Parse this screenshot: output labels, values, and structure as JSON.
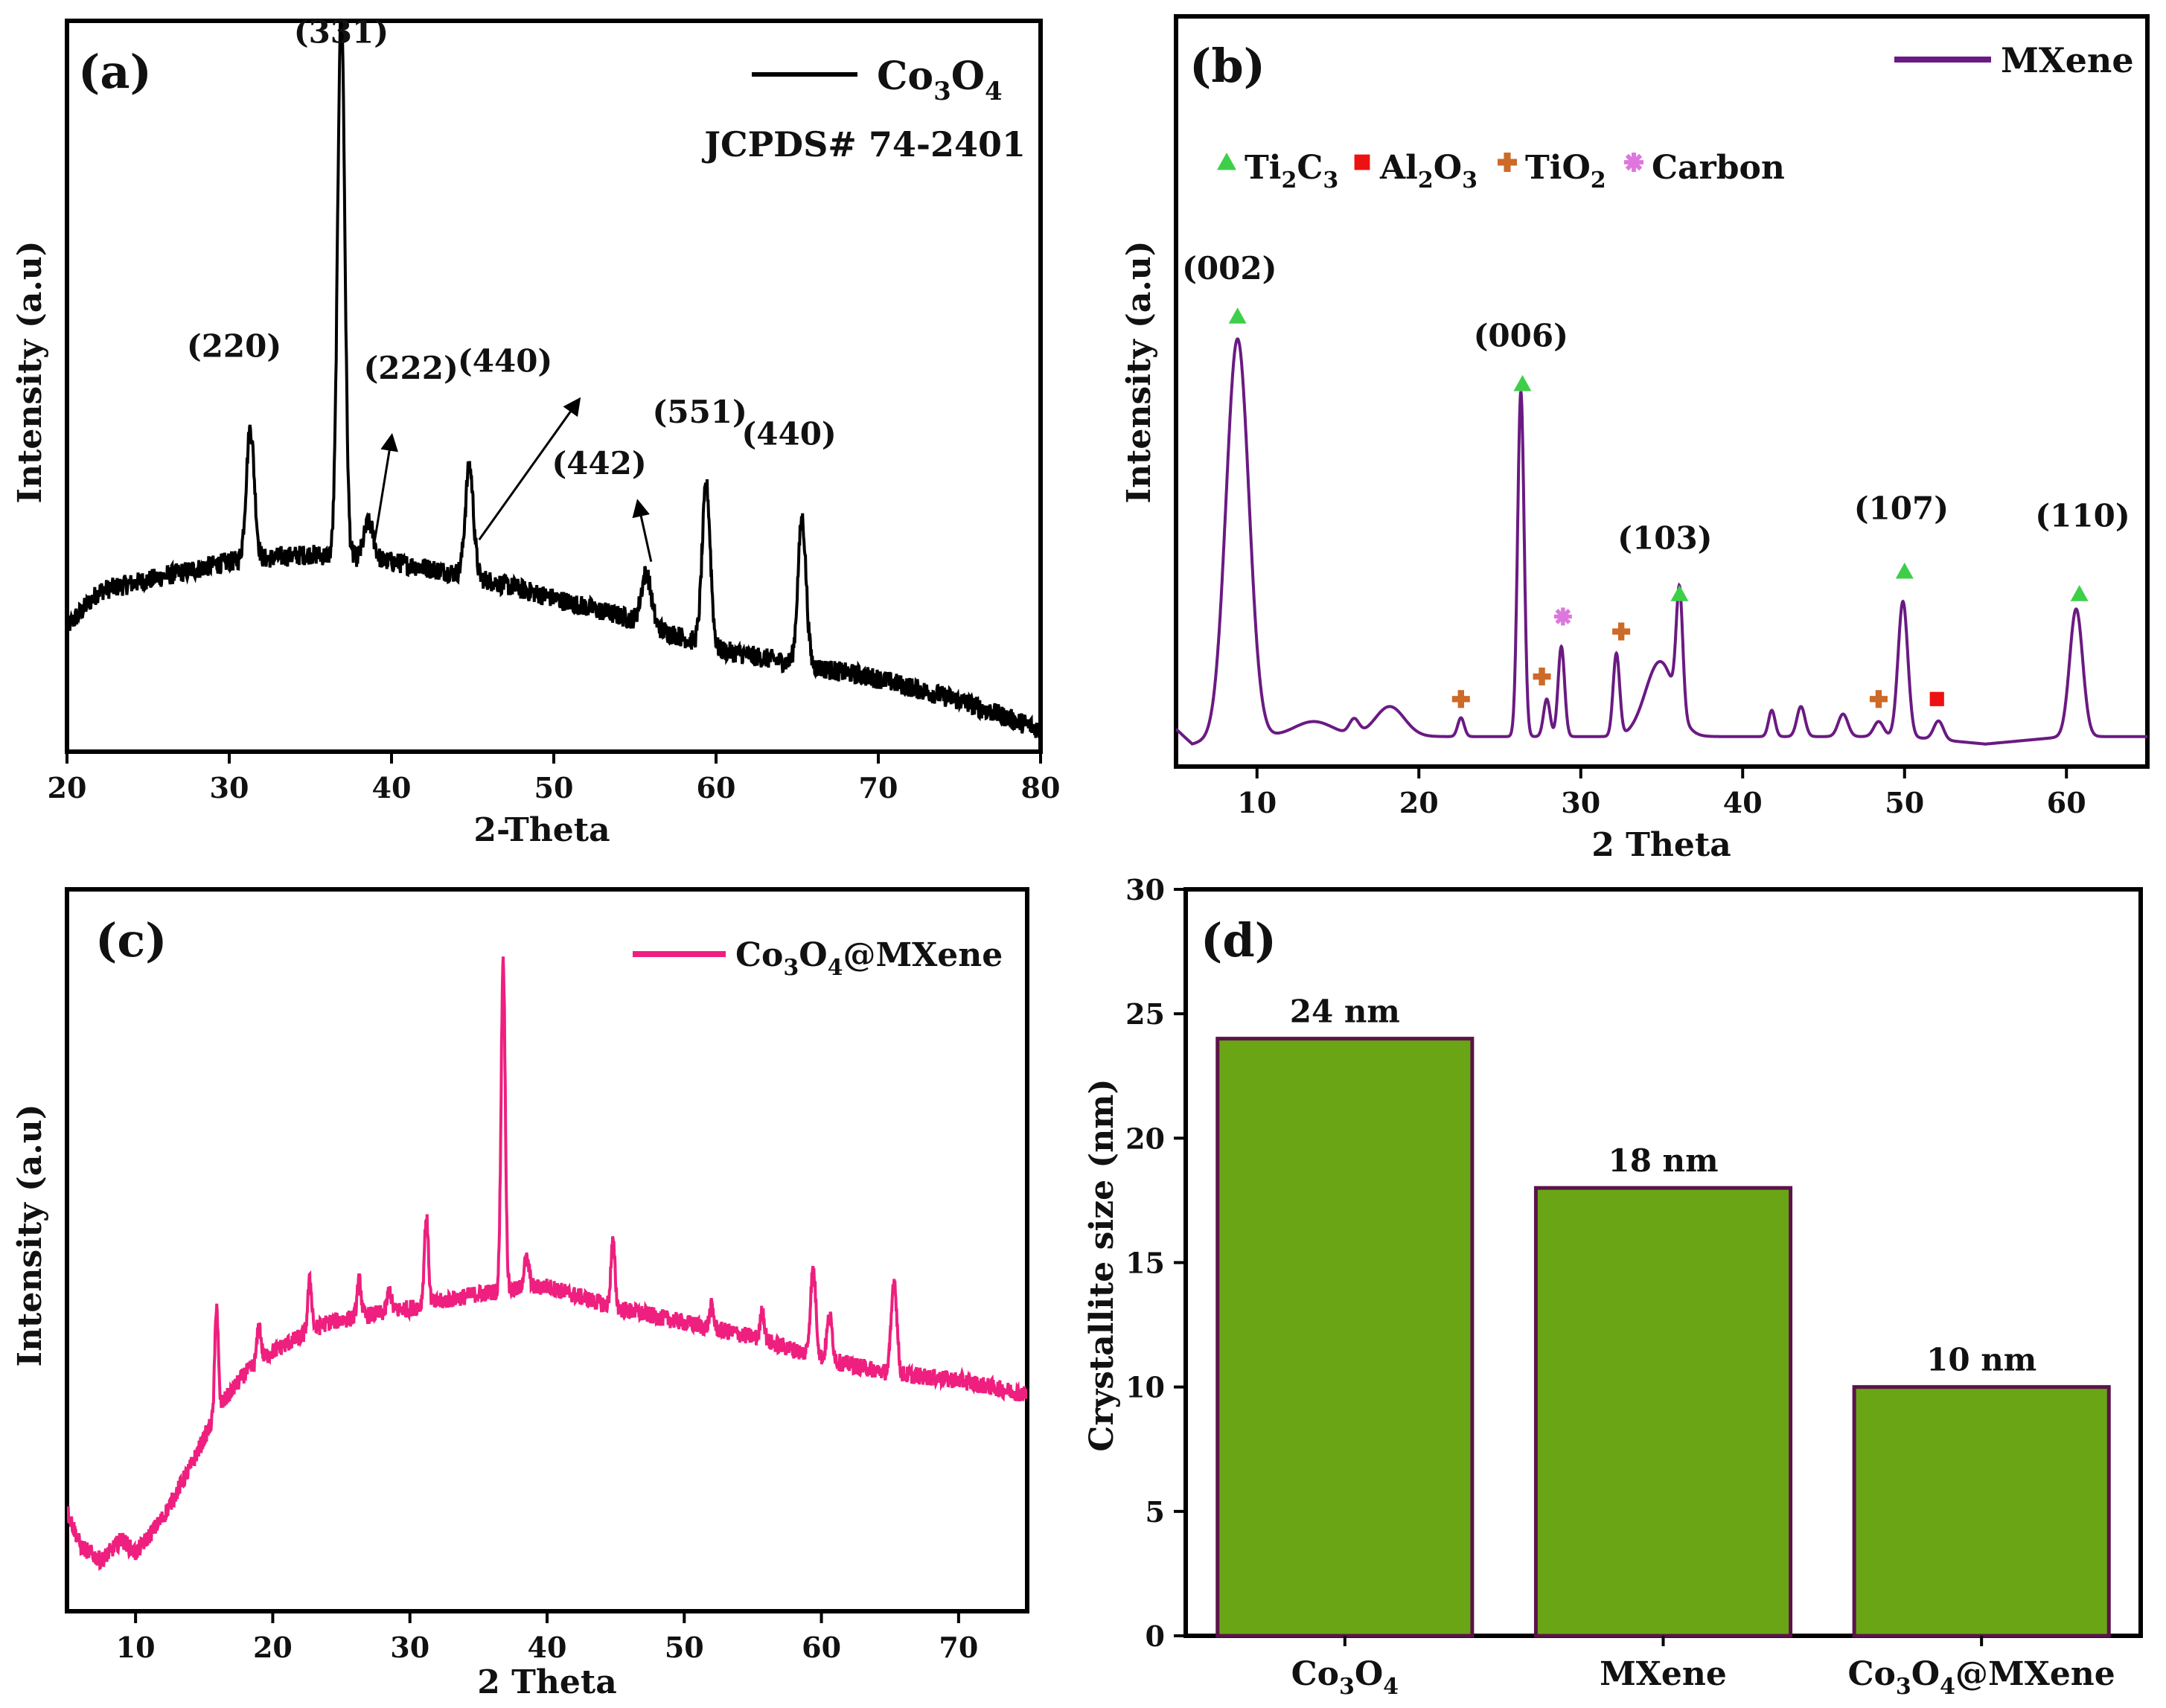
{
  "chart_data": [
    {
      "id": "a",
      "type": "line",
      "panel_label": "(a)",
      "xlabel": "2-Theta",
      "ylabel": "Intensity (a.u)",
      "xlim": [
        20,
        80
      ],
      "ylim": [
        0,
        100
      ],
      "xticks": [
        20,
        30,
        40,
        50,
        60,
        70,
        80
      ],
      "legend": {
        "name_main": "Co",
        "sub1": "3",
        "mid": "O",
        "sub2": "4",
        "position": "top-right"
      },
      "reference_text": "JCPDS# 74-2401",
      "series": [
        {
          "name": "Co3O4",
          "color": "#000000",
          "baseline": [
            [
              20,
              17
            ],
            [
              22,
              22
            ],
            [
              26,
              24
            ],
            [
              30,
              26
            ],
            [
              35,
              27
            ],
            [
              40,
              26
            ],
            [
              45,
              24
            ],
            [
              50,
              21
            ],
            [
              55,
              18
            ],
            [
              60,
              14
            ],
            [
              65,
              12
            ],
            [
              70,
              10
            ],
            [
              75,
              7
            ],
            [
              80,
              3
            ]
          ],
          "peaks": [
            [
              31.3,
              18,
              0.25
            ],
            [
              36.9,
              76,
              0.22
            ],
            [
              38.6,
              5,
              0.3
            ],
            [
              44.8,
              15,
              0.25
            ],
            [
              55.7,
              7,
              0.3
            ],
            [
              59.4,
              22,
              0.25
            ],
            [
              65.3,
              20,
              0.25
            ]
          ],
          "noise": 1.4
        }
      ],
      "peak_labels": [
        {
          "text": "(331)",
          "x": 36.9,
          "y": 97
        },
        {
          "text": "(220)",
          "x": 30.3,
          "y": 54
        },
        {
          "text": "(222)",
          "x": 41.2,
          "y": 51
        },
        {
          "text": "(440)",
          "x": 47.0,
          "y": 52
        },
        {
          "text": "(442)",
          "x": 52.8,
          "y": 38
        },
        {
          "text": "(551)",
          "x": 59.0,
          "y": 45
        },
        {
          "text": "(440)",
          "x": 64.5,
          "y": 42
        }
      ],
      "arrows": [
        {
          "from": [
            38.9,
            28
          ],
          "to": [
            40.0,
            43
          ]
        },
        {
          "from": [
            45.4,
            29
          ],
          "to": [
            51.5,
            48
          ]
        },
        {
          "from": [
            56.0,
            26
          ],
          "to": [
            55.2,
            34
          ]
        }
      ]
    },
    {
      "id": "b",
      "type": "line",
      "panel_label": "(b)",
      "xlabel": "2 Theta",
      "ylabel": "Intensity (a.u)",
      "xlim": [
        5,
        65
      ],
      "ylim": [
        0,
        100
      ],
      "xticks": [
        10,
        20,
        30,
        40,
        50,
        60
      ],
      "legend": {
        "name": "MXene",
        "position": "top-right"
      },
      "phase_legend": [
        {
          "marker": "triangle",
          "color": "#3ecf4a",
          "main": "Ti",
          "sub1": "2",
          "mid": "C",
          "sub2": "3"
        },
        {
          "marker": "square",
          "color": "#ee1111",
          "main": "Al",
          "sub1": "2",
          "mid": "O",
          "sub2": "3"
        },
        {
          "marker": "plus",
          "color": "#cc6a28",
          "main": "TiO",
          "sub1": "2",
          "mid": "",
          "sub2": ""
        },
        {
          "marker": "star",
          "color": "#dd77dd",
          "main": "Carbon",
          "sub1": "",
          "mid": "",
          "sub2": ""
        }
      ],
      "series": [
        {
          "name": "MXene",
          "color": "#6a1a82",
          "baseline": [
            [
              5,
              5
            ],
            [
              6,
              3
            ],
            [
              8,
              4
            ],
            [
              12,
              4
            ],
            [
              20,
              4
            ],
            [
              30,
              4
            ],
            [
              40,
              4
            ],
            [
              50,
              4
            ],
            [
              55,
              3
            ],
            [
              60,
              4
            ],
            [
              65,
              4
            ]
          ],
          "peaks": [
            [
              8.8,
              53,
              0.7
            ],
            [
              13.5,
              2,
              1.2
            ],
            [
              16,
              2,
              0.3
            ],
            [
              18.2,
              4,
              0.9
            ],
            [
              22.6,
              2.5,
              0.2
            ],
            [
              26.3,
              46,
              0.2
            ],
            [
              27.9,
              5,
              0.2
            ],
            [
              28.8,
              12,
              0.2
            ],
            [
              32.2,
              11,
              0.2
            ],
            [
              34.9,
              10,
              0.9
            ],
            [
              36.1,
              16,
              0.2
            ],
            [
              41.8,
              3.5,
              0.2
            ],
            [
              43.6,
              4,
              0.25
            ],
            [
              46.2,
              3,
              0.3
            ],
            [
              48.4,
              2,
              0.3
            ],
            [
              49.9,
              18,
              0.3
            ],
            [
              52.1,
              2.5,
              0.3
            ],
            [
              60.6,
              17,
              0.4
            ]
          ],
          "noise": 0
        }
      ],
      "peak_labels": [
        {
          "text": "(002)",
          "x": 8.3,
          "y": 65
        },
        {
          "text": "(006)",
          "x": 26.3,
          "y": 56
        },
        {
          "text": "(103)",
          "x": 35.2,
          "y": 29
        },
        {
          "text": "(107)",
          "x": 49.8,
          "y": 33
        },
        {
          "text": "(110)",
          "x": 61.0,
          "y": 32
        }
      ],
      "markers": [
        {
          "type": "triangle",
          "x": 8.8,
          "y": 60
        },
        {
          "type": "triangle",
          "x": 26.4,
          "y": 51
        },
        {
          "type": "triangle",
          "x": 36.1,
          "y": 23
        },
        {
          "type": "triangle",
          "x": 50.0,
          "y": 26
        },
        {
          "type": "triangle",
          "x": 60.8,
          "y": 23
        },
        {
          "type": "plus",
          "x": 22.6,
          "y": 9
        },
        {
          "type": "plus",
          "x": 27.6,
          "y": 12
        },
        {
          "type": "plus",
          "x": 32.5,
          "y": 18
        },
        {
          "type": "plus",
          "x": 48.4,
          "y": 9
        },
        {
          "type": "star",
          "x": 28.9,
          "y": 20
        },
        {
          "type": "square",
          "x": 52.0,
          "y": 9
        }
      ]
    },
    {
      "id": "c",
      "type": "line",
      "panel_label": "(c)",
      "xlabel": "2 Theta",
      "ylabel": "Intensity (a.u)",
      "xlim": [
        5,
        75
      ],
      "ylim": [
        0,
        100
      ],
      "xticks": [
        10,
        20,
        30,
        40,
        50,
        60,
        70
      ],
      "legend": {
        "name_main": "Co",
        "sub1": "3",
        "mid": "O",
        "sub2": "4",
        "suffix": "@MXene",
        "position": "top-right"
      },
      "series": [
        {
          "name": "Co3O4@MXene",
          "color": "#ee1f7e",
          "baseline": [
            [
              5,
              14
            ],
            [
              6,
              9
            ],
            [
              7.5,
              7
            ],
            [
              9,
              10
            ],
            [
              10,
              8
            ],
            [
              12,
              13
            ],
            [
              14,
              20
            ],
            [
              16,
              28
            ],
            [
              18,
              33
            ],
            [
              20,
              36
            ],
            [
              24,
              40
            ],
            [
              30,
              42
            ],
            [
              35,
              44
            ],
            [
              40,
              45
            ],
            [
              45,
              42
            ],
            [
              50,
              40
            ],
            [
              55,
              38
            ],
            [
              60,
              35
            ],
            [
              65,
              33
            ],
            [
              70,
              32
            ],
            [
              75,
              30
            ]
          ],
          "peaks": [
            [
              15.9,
              15,
              0.12
            ],
            [
              19.0,
              5,
              0.15
            ],
            [
              22.7,
              7,
              0.15
            ],
            [
              26.3,
              5,
              0.15
            ],
            [
              28.5,
              3,
              0.15
            ],
            [
              31.2,
              12,
              0.15
            ],
            [
              36.8,
              46,
              0.15
            ],
            [
              38.5,
              4,
              0.2
            ],
            [
              44.8,
              9,
              0.15
            ],
            [
              52.0,
              3,
              0.15
            ],
            [
              55.7,
              4,
              0.15
            ],
            [
              59.4,
              12,
              0.2
            ],
            [
              60.6,
              6,
              0.2
            ],
            [
              65.3,
              13,
              0.2
            ]
          ],
          "noise": 1.2
        }
      ]
    },
    {
      "id": "d",
      "type": "bar",
      "panel_label": "(d)",
      "ylabel": "Crystallite size (nm)",
      "ylim": [
        0,
        30
      ],
      "yticks": [
        0,
        5,
        10,
        15,
        20,
        25,
        30
      ],
      "bar_color": "#6aa516",
      "bar_edge": "#5a1449",
      "categories": [
        {
          "main": "Co",
          "sub1": "3",
          "mid": "O",
          "sub2": "4",
          "suffix": ""
        },
        {
          "main": "MXene",
          "sub1": "",
          "mid": "",
          "sub2": "",
          "suffix": ""
        },
        {
          "main": "Co",
          "sub1": "3",
          "mid": "O",
          "sub2": "4",
          "suffix": "@MXene"
        }
      ],
      "values": [
        24,
        18,
        10
      ],
      "value_labels": [
        "24 nm",
        "18 nm",
        "10 nm"
      ]
    }
  ]
}
